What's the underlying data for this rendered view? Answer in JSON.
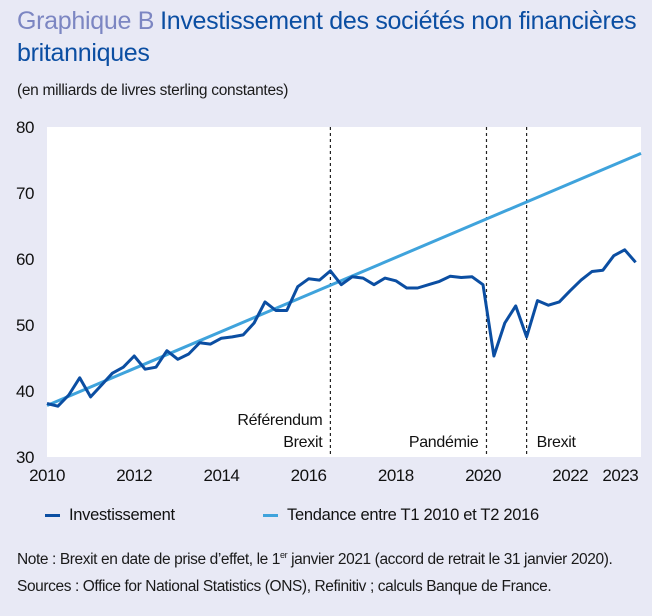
{
  "title": {
    "number": "Graphique B",
    "text": "Investissement des sociétés non financières britanniques"
  },
  "subtitle": "(en milliards de livres sterling constantes)",
  "legend": {
    "investment": "Investissement",
    "trend": "Tendance entre T1 2010 et T2 2016"
  },
  "note": {
    "prefix": "Note : Brexit en date de prise d’effet, le 1",
    "sup": "er",
    "suffix": " janvier 2021 (accord de retrait le 31 janvier 2020)."
  },
  "sources": "Sources : Office for National Statistics (ONS), Refinitiv ; calculs Banque de France.",
  "colors": {
    "investment": "#0b4ea2",
    "trend": "#3fa3dc",
    "background": "#e8e9f5",
    "plot": "#ffffff"
  },
  "chart_data": {
    "type": "line",
    "x_start": "2010 T1",
    "x_end": "2023 T3",
    "frequency": "quarterly",
    "ylim": [
      30,
      80
    ],
    "yticks": [
      "30",
      "40",
      "50",
      "60",
      "70",
      "80"
    ],
    "xticks": [
      "2010",
      "2012",
      "2014",
      "2016",
      "2018",
      "2020",
      "2022",
      "2023"
    ],
    "grid": false,
    "legend_position": "bottom",
    "series": [
      {
        "name": "Investissement",
        "values": [
          38.1,
          37.7,
          39.4,
          42.0,
          39.1,
          40.9,
          42.7,
          43.6,
          45.3,
          43.3,
          43.6,
          46.1,
          44.8,
          45.6,
          47.3,
          47.1,
          48.0,
          48.2,
          48.5,
          50.3,
          53.5,
          52.2,
          52.2,
          55.8,
          57.0,
          56.8,
          58.2,
          56.1,
          57.3,
          57.1,
          56.1,
          57.1,
          56.7,
          55.6,
          55.6,
          56.1,
          56.6,
          57.4,
          57.2,
          57.3,
          56.1,
          45.3,
          50.3,
          52.9,
          48.2,
          53.7,
          53.0,
          53.5,
          55.2,
          56.8,
          58.1,
          58.3,
          60.5,
          61.4,
          59.5
        ]
      },
      {
        "name": "Tendance entre T1 2010 et T2 2016",
        "start": 37.8,
        "end": 76.0
      }
    ],
    "events": [
      {
        "year": 2016.5,
        "label": [
          "Référendum",
          "Brexit"
        ],
        "align": "left-of-line"
      },
      {
        "year": 2020.08,
        "label": [
          "Pandémie"
        ],
        "align": "left-of-line"
      },
      {
        "year": 2021.0,
        "label": [
          "Brexit"
        ],
        "align": "right-of-line"
      }
    ]
  }
}
